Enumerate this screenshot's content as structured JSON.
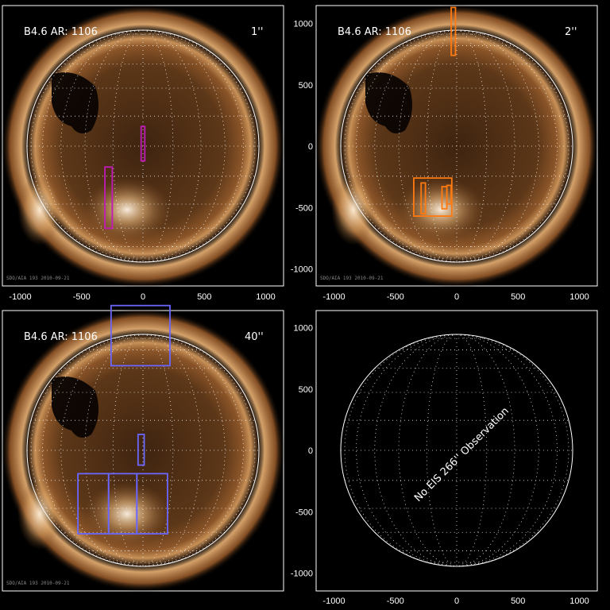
{
  "figure": {
    "axis_tick_labels": [
      "-1000",
      "-500",
      "0",
      "500",
      "1000"
    ],
    "colors": {
      "sun_dark": "#1a0c04",
      "sun_mid": "#7a4a22",
      "sun_bright": "#f2d7b0",
      "grid": "#ffffff",
      "overlay_1": "#c11ab8",
      "overlay_2": "#ff7a10",
      "overlay_40": "#6a66ff"
    }
  },
  "panels": [
    {
      "id": "tl",
      "label": "B4.6 AR: 1106",
      "resolution": "1''",
      "res_color": "#c11ab8",
      "footer": "SDO/AIA 193 2010-09-21",
      "has_image": true
    },
    {
      "id": "tr",
      "label": "B4.6 AR: 1106",
      "resolution": "2''",
      "res_color": "#ff7a10",
      "footer": "SDO/AIA 193 2010-09-21",
      "has_image": true
    },
    {
      "id": "bl",
      "label": "B4.6 AR: 1106",
      "resolution": "40''",
      "res_color": "#6a66ff",
      "footer": "SDO/AIA 193 2010-09-21",
      "has_image": true
    },
    {
      "id": "br",
      "label": "",
      "resolution": "",
      "footer": "",
      "has_image": false,
      "message": "No EIS 266'' Observation"
    }
  ],
  "overlays": {
    "tl": [
      {
        "color": "#c11ab8",
        "x0": -15,
        "x1": 15,
        "y0": -120,
        "y1": 160
      },
      {
        "color": "#c11ab8",
        "x0": -310,
        "x1": -250,
        "y0": -670,
        "y1": -170
      }
    ],
    "tr": [
      {
        "color": "#ff7a10",
        "x0": -45,
        "x1": -10,
        "y0": 740,
        "y1": 1130
      },
      {
        "color": "#ff7a10",
        "x0": -350,
        "x1": -40,
        "y0": -570,
        "y1": -260
      },
      {
        "color": "#ff7a10",
        "x0": -290,
        "x1": -255,
        "y0": -550,
        "y1": -300
      },
      {
        "color": "#ff7a10",
        "x0": -120,
        "x1": -80,
        "y0": -510,
        "y1": -330
      },
      {
        "color": "#ff7a10",
        "x0": -80,
        "x1": -45,
        "y0": -470,
        "y1": -320
      }
    ],
    "bl": [
      {
        "color": "#6a66ff",
        "x0": -260,
        "x1": 220,
        "y0": 690,
        "y1": 1180
      },
      {
        "color": "#6a66ff",
        "x0": -40,
        "x1": 10,
        "y0": -120,
        "y1": 130
      },
      {
        "color": "#6a66ff",
        "x0": -530,
        "x1": -280,
        "y0": -680,
        "y1": -190
      },
      {
        "color": "#6a66ff",
        "x0": -280,
        "x1": -50,
        "y0": -680,
        "y1": -190
      },
      {
        "color": "#6a66ff",
        "x0": -50,
        "x1": 200,
        "y0": -680,
        "y1": -190
      }
    ]
  }
}
